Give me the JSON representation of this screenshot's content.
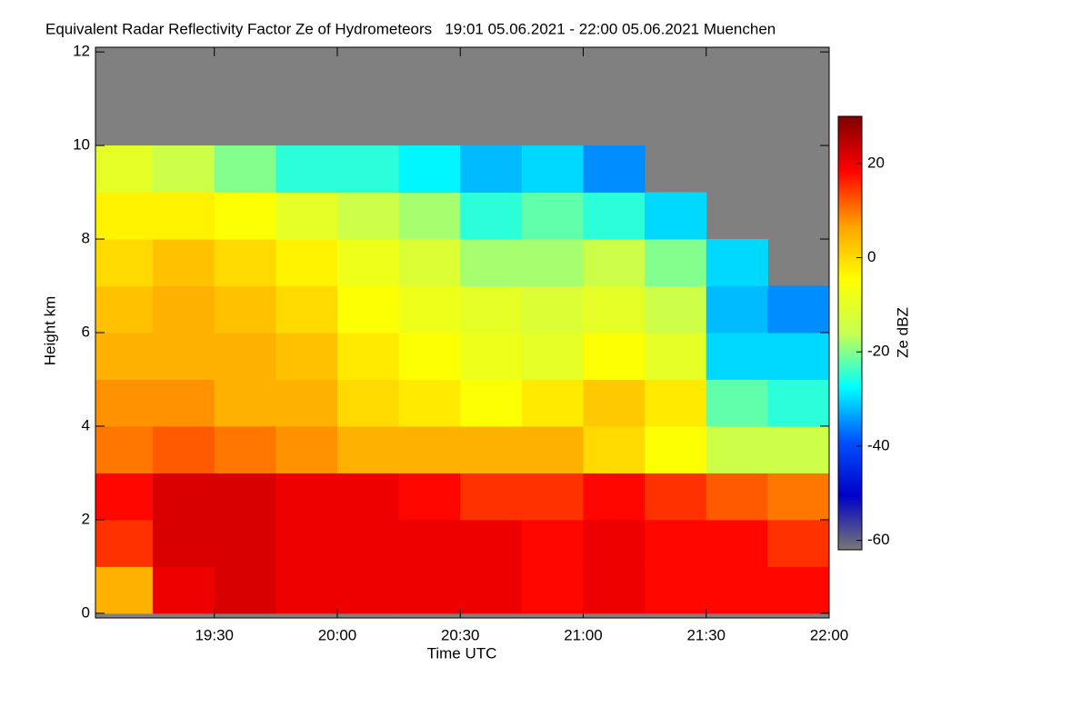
{
  "chart_data": {
    "type": "heatmap",
    "title": "Equivalent Radar Reflectivity Factor Ze of Hydrometeors   19:01 05.06.2021 - 22:00 05.06.2021 Muenchen",
    "x_label": "Time UTC",
    "y_label": "Height km",
    "colorbar_label": "Ze dBZ",
    "xlim": [
      "19:01",
      "22:00"
    ],
    "xticks": [
      "19:30",
      "20:00",
      "20:30",
      "21:00",
      "21:30",
      "22:00"
    ],
    "ylim": [
      -0.1,
      12.1
    ],
    "yticks": [
      0,
      2,
      4,
      6,
      8,
      10,
      12
    ],
    "x": [
      "19:01",
      "19:15",
      "19:30",
      "19:45",
      "20:00",
      "20:15",
      "20:30",
      "20:45",
      "21:00",
      "21:15",
      "21:30",
      "21:45"
    ],
    "ybins": [
      0,
      1,
      2,
      3,
      4,
      5,
      6,
      7,
      8,
      9,
      10,
      11,
      12
    ],
    "z": [
      [
        5,
        20,
        22,
        20,
        20,
        20,
        20,
        18,
        20,
        18,
        18,
        18
      ],
      [
        15,
        22,
        22,
        20,
        20,
        20,
        20,
        18,
        20,
        18,
        18,
        15
      ],
      [
        18,
        22,
        22,
        20,
        20,
        18,
        15,
        15,
        18,
        15,
        12,
        10
      ],
      [
        10,
        12,
        10,
        8,
        5,
        5,
        5,
        5,
        0,
        -5,
        -15,
        -15
      ],
      [
        8,
        8,
        5,
        5,
        0,
        -2,
        -5,
        -2,
        2,
        -2,
        -22,
        -25
      ],
      [
        5,
        5,
        5,
        3,
        -2,
        -5,
        -8,
        -10,
        -5,
        -10,
        -30,
        -30
      ],
      [
        3,
        5,
        3,
        0,
        -5,
        -8,
        -10,
        -12,
        -10,
        -15,
        -32,
        -35
      ],
      [
        0,
        3,
        0,
        -3,
        -8,
        -12,
        -18,
        -18,
        -15,
        -20,
        -30,
        null
      ],
      [
        -3,
        -3,
        -5,
        -10,
        -15,
        -18,
        -25,
        -22,
        -25,
        -30,
        null,
        null
      ],
      [
        -10,
        -15,
        -20,
        -25,
        -25,
        -28,
        -32,
        -30,
        -35,
        null,
        null,
        null
      ],
      [
        null,
        null,
        null,
        null,
        null,
        null,
        null,
        null,
        null,
        null,
        null,
        null
      ],
      [
        null,
        null,
        null,
        null,
        null,
        null,
        null,
        null,
        null,
        null,
        null,
        null
      ]
    ],
    "zlim": [
      -62,
      30
    ],
    "zticks": [
      -60,
      -40,
      -20,
      0,
      20
    ],
    "colormap": [
      "#777777",
      "#0000c8",
      "#0050ff",
      "#00ffff",
      "#c8ff50",
      "#ffff00",
      "#ffa000",
      "#ff0000",
      "#800000"
    ],
    "no_data_color": "#808080"
  }
}
